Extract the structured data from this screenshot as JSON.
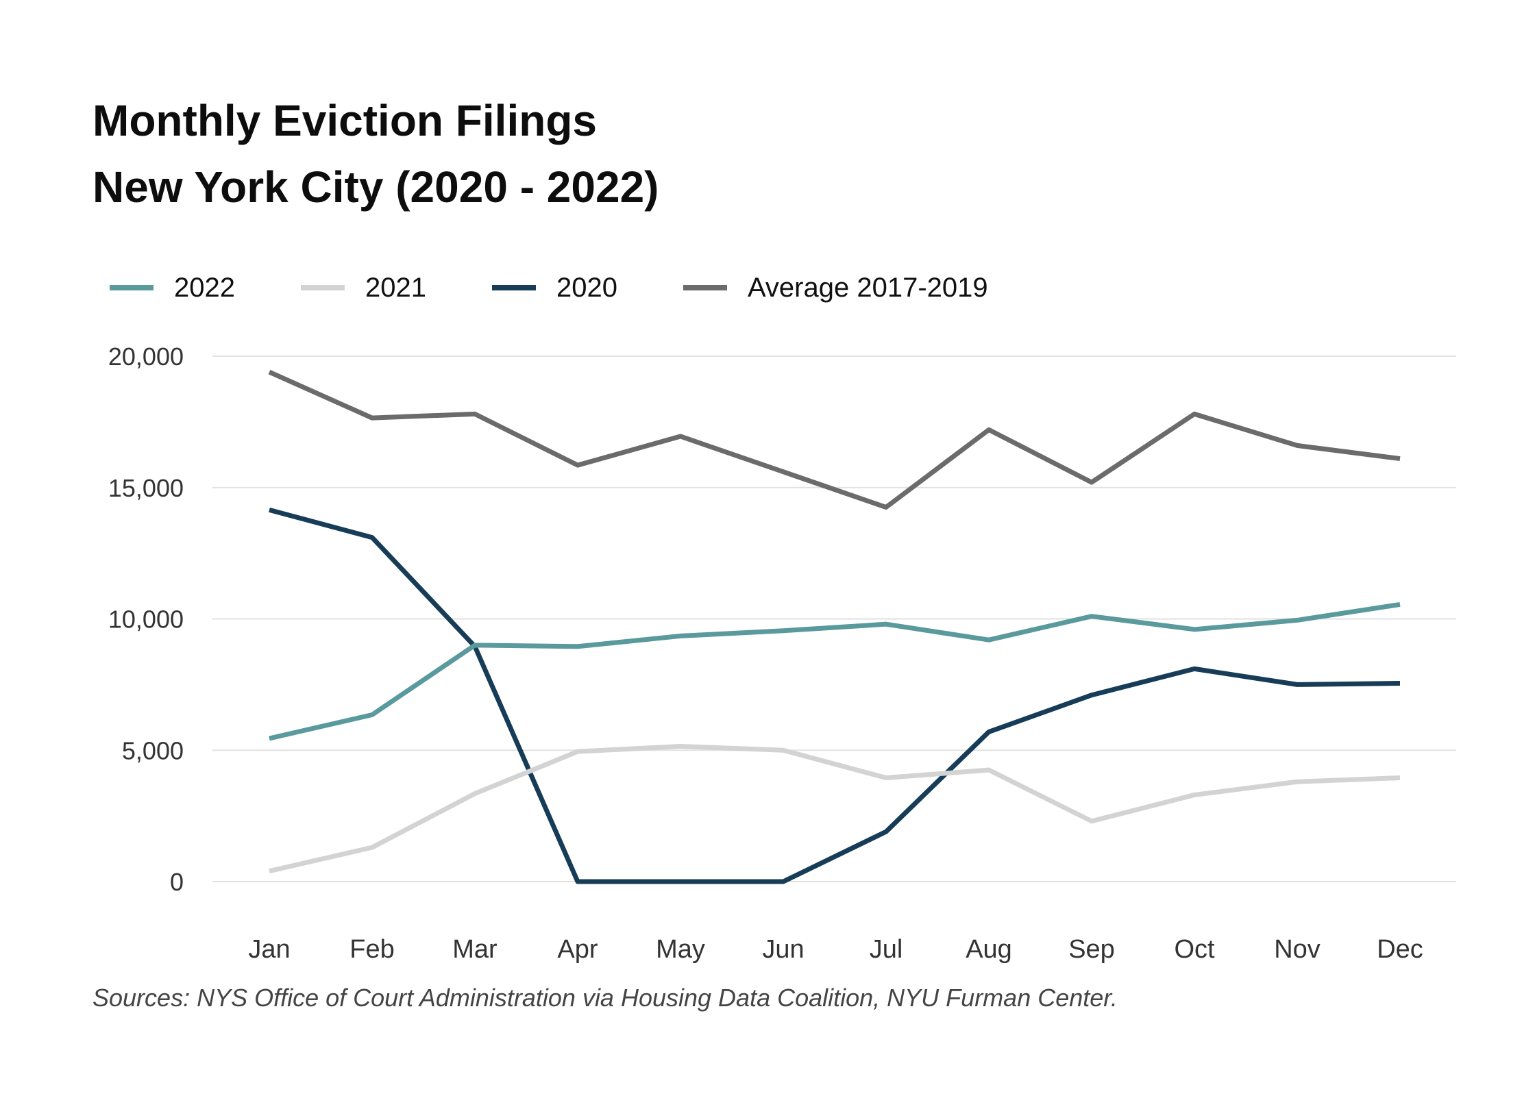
{
  "title_line1": "Monthly Eviction Filings",
  "title_line2": "New York City (2020 - 2022)",
  "source": "Sources: NYS Office of Court Administration via Housing Data Coalition, NYU Furman Center.",
  "chart_data": {
    "type": "line",
    "title": "Monthly Eviction Filings New York City (2020 - 2022)",
    "xlabel": "",
    "ylabel": "",
    "categories": [
      "Jan",
      "Feb",
      "Mar",
      "Apr",
      "May",
      "Jun",
      "Jul",
      "Aug",
      "Sep",
      "Oct",
      "Nov",
      "Dec"
    ],
    "ylim": [
      0,
      20000
    ],
    "yticks": [
      0,
      5000,
      10000,
      15000,
      20000
    ],
    "ytick_labels": [
      "0",
      "5,000",
      "10,000",
      "15,000",
      "20,000"
    ],
    "grid": true,
    "legend_position": "top-left",
    "series": [
      {
        "name": "2022",
        "color": "#5a9a9c",
        "values": [
          5450,
          6350,
          9000,
          8950,
          9350,
          9550,
          9800,
          9200,
          10100,
          9600,
          9950,
          10550
        ]
      },
      {
        "name": "2021",
        "color": "#d3d3d3",
        "values": [
          400,
          1300,
          3350,
          4950,
          5150,
          5000,
          3950,
          4250,
          2300,
          3300,
          3800,
          3950
        ]
      },
      {
        "name": "2020",
        "color": "#163c57",
        "values": [
          14150,
          13100,
          8950,
          0,
          0,
          0,
          1900,
          5700,
          7100,
          8100,
          7500,
          7550
        ]
      },
      {
        "name": "Average 2017-2019",
        "color": "#6b6b6b",
        "values": [
          19400,
          17650,
          17800,
          15850,
          16950,
          15600,
          14250,
          17200,
          15200,
          17800,
          16600,
          16100
        ]
      }
    ]
  }
}
